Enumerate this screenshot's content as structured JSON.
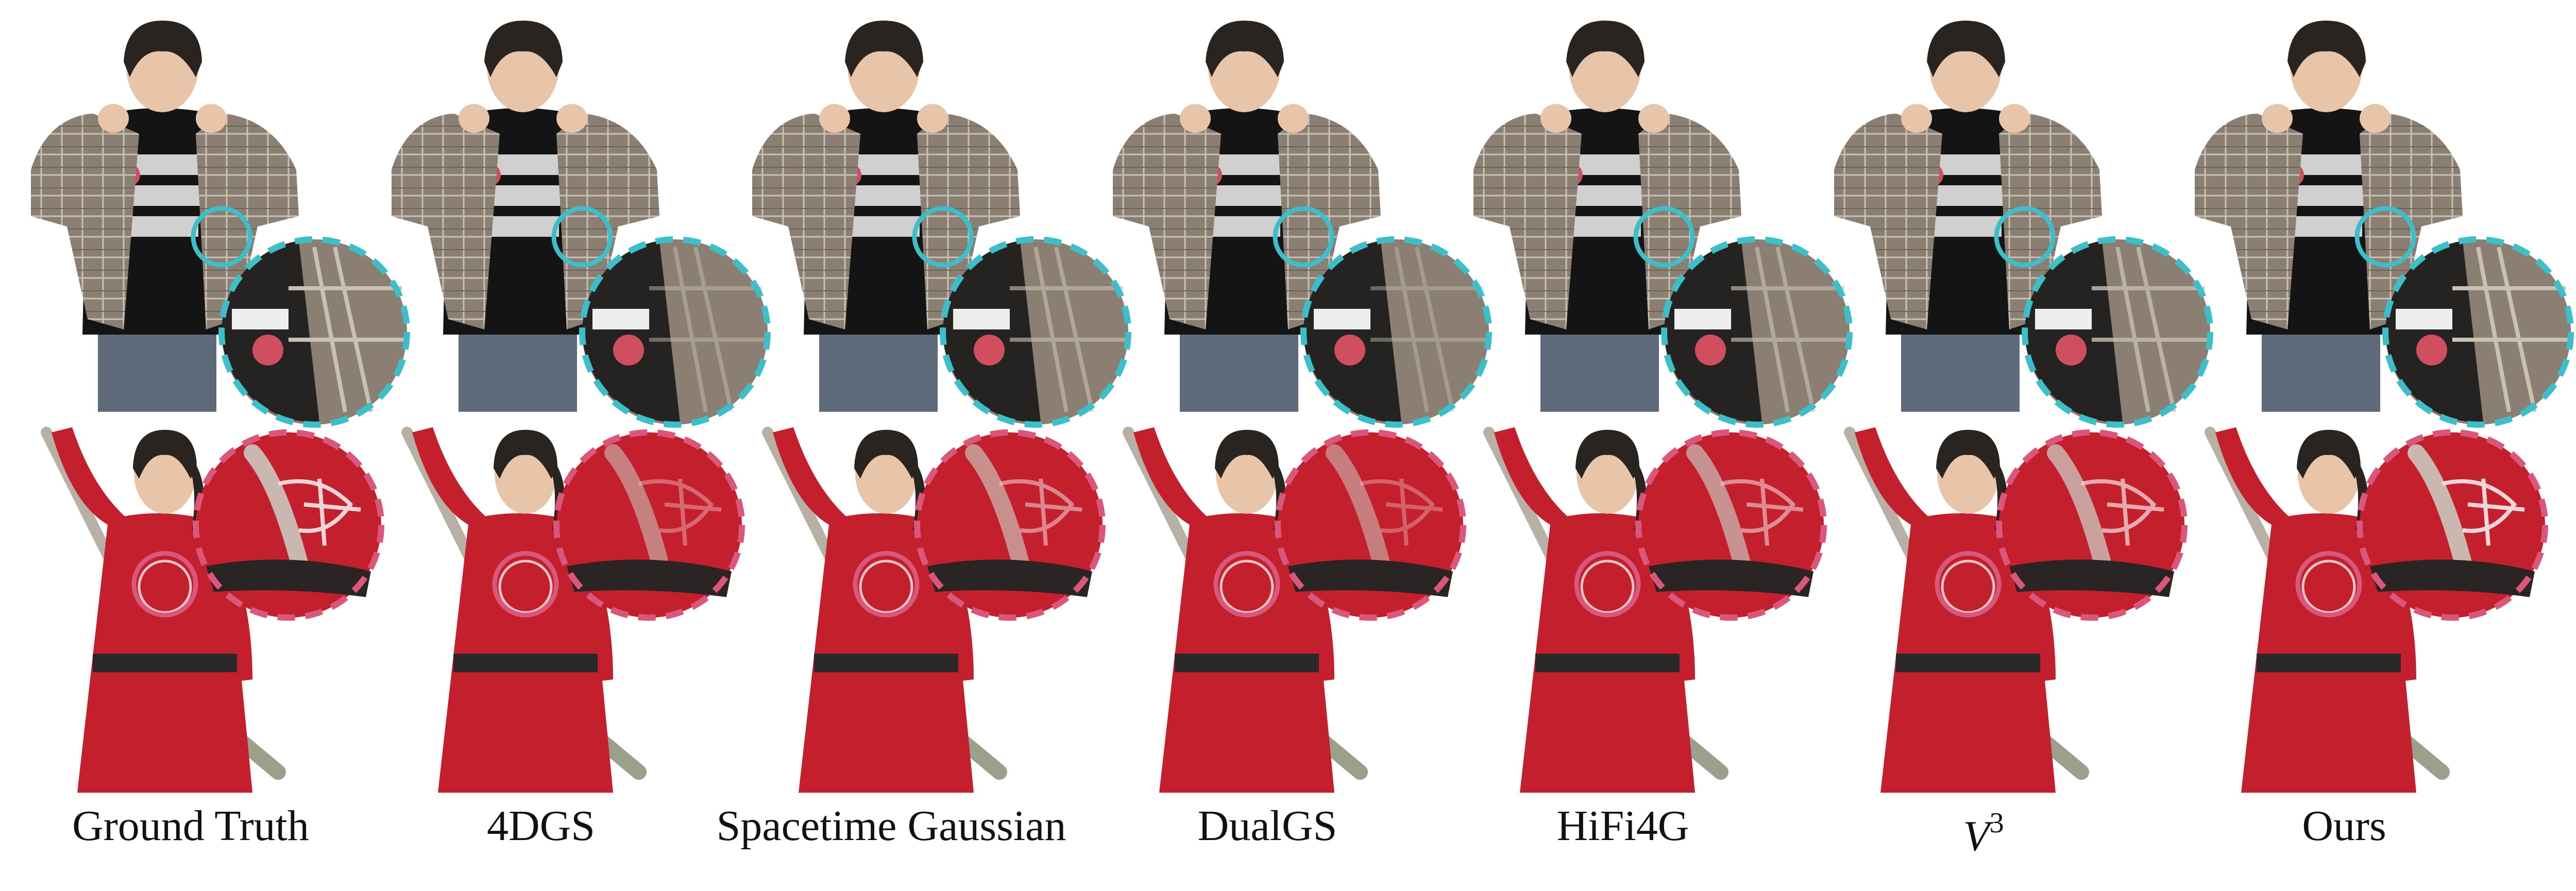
{
  "methods": [
    {
      "id": "gt",
      "label": "Ground Truth"
    },
    {
      "id": "4dgs",
      "label": "4DGS"
    },
    {
      "id": "stg",
      "label": "Spacetime Gaussian"
    },
    {
      "id": "dualgs",
      "label": "DualGS"
    },
    {
      "id": "hifi4g",
      "label": "HiFi4G"
    },
    {
      "id": "v3",
      "label_base": "V",
      "label_sup": "3"
    },
    {
      "id": "ours",
      "label": "Ours"
    }
  ],
  "colors": {
    "row1_highlight": "#3dbfc9",
    "row2_highlight": "#d8577a",
    "jacket": "#8a7f72",
    "shirt": "#141414",
    "dress": "#c41f2c",
    "skin": "#e8c4a8",
    "hair": "#2a2420",
    "jeans": "#5e6a7a"
  }
}
